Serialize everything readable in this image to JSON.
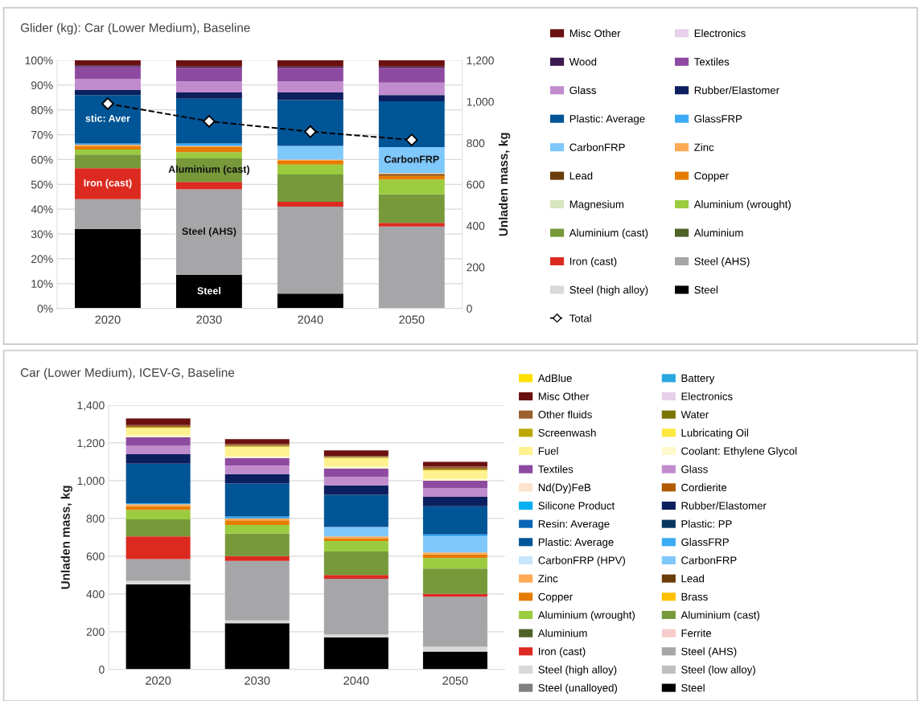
{
  "chart_data": [
    {
      "type": "bar",
      "title": "Glider (kg): Car (Lower Medium), Baseline",
      "y2label": "Unladen mass, kg",
      "stacked": true,
      "grid": "y",
      "legend": "right",
      "categories": [
        "2020",
        "2030",
        "2040",
        "2050"
      ],
      "ylim": [
        0,
        100
      ],
      "yticks": [
        {
          "value": 0,
          "label": "0%"
        },
        {
          "value": 10,
          "label": "10%"
        },
        {
          "value": 20,
          "label": "20%"
        },
        {
          "value": 30,
          "label": "30%"
        },
        {
          "value": 40,
          "label": "40%"
        },
        {
          "value": 50,
          "label": "50%"
        },
        {
          "value": 60,
          "label": "60%"
        },
        {
          "value": 70,
          "label": "70%"
        },
        {
          "value": 80,
          "label": "80%"
        },
        {
          "value": 90,
          "label": "90%"
        },
        {
          "value": 100,
          "label": "100%"
        }
      ],
      "y2lim": [
        0,
        1200
      ],
      "y2ticks": [
        0,
        200,
        400,
        600,
        800,
        {
          "value": 1000,
          "label": "1,000"
        },
        {
          "value": 1200,
          "label": "1,200"
        }
      ],
      "series": [
        {
          "name": "Steel",
          "color": "#000000",
          "values": [
            32,
            13.5,
            6,
            0
          ],
          "value_labels": [
            null,
            "Steel",
            null,
            null
          ]
        },
        {
          "name": "Steel (high alloy)",
          "color": "#d9d9d9",
          "values": [
            0,
            0,
            0,
            0
          ]
        },
        {
          "name": "Steel (AHS)",
          "color": "#a6a6a8",
          "values": [
            12,
            34.5,
            35,
            33
          ],
          "value_labels": [
            null,
            "Steel (AHS)",
            null,
            null
          ]
        },
        {
          "name": "Iron (cast)",
          "color": "#dc2a20",
          "values": [
            12.5,
            3,
            2,
            1.5
          ],
          "value_labels": [
            "Iron (cast)",
            null,
            null,
            null
          ]
        },
        {
          "name": "Aluminium",
          "color": "#4f6228",
          "values": [
            0,
            0,
            0,
            0
          ]
        },
        {
          "name": "Aluminium (cast)",
          "color": "#77993a",
          "values": [
            5.5,
            9.5,
            11,
            11.5
          ],
          "value_labels": [
            null,
            "Aluminium (cast)",
            null,
            null
          ]
        },
        {
          "name": "Aluminium (wrought)",
          "color": "#9bcc40",
          "values": [
            2,
            2.5,
            4,
            6
          ]
        },
        {
          "name": "Magnesium",
          "color": "#d7e4bd",
          "values": [
            0,
            0,
            0,
            0
          ]
        },
        {
          "name": "Copper",
          "color": "#e57c00",
          "values": [
            1.5,
            2,
            1.5,
            1.5
          ]
        },
        {
          "name": "Lead",
          "color": "#6b3d0a",
          "values": [
            0,
            0,
            0,
            0.5
          ]
        },
        {
          "name": "Zinc",
          "color": "#ffaa55",
          "values": [
            0.5,
            0.5,
            0.5,
            0.5
          ]
        },
        {
          "name": "CarbonFRP",
          "color": "#7fc8fc",
          "values": [
            0,
            0,
            5.5,
            10.5
          ],
          "value_labels": [
            null,
            null,
            null,
            "CarbonFRP"
          ]
        },
        {
          "name": "GlassFRP",
          "color": "#3baaf5",
          "values": [
            0.5,
            1,
            0,
            0
          ]
        },
        {
          "name": "Plastic: Average",
          "color": "#005596",
          "values": [
            19.5,
            18,
            18.5,
            18.5
          ],
          "value_labels": [
            "stic: Aver",
            null,
            null,
            null
          ]
        },
        {
          "name": "Rubber/Elastomer",
          "color": "#0c1f5e",
          "values": [
            2,
            2.5,
            3,
            2.5
          ]
        },
        {
          "name": "Glass",
          "color": "#c08ccd",
          "values": [
            4.5,
            4.5,
            4.5,
            5
          ]
        },
        {
          "name": "Textiles",
          "color": "#8e4aa0",
          "values": [
            5,
            5.5,
            5.5,
            6
          ]
        },
        {
          "name": "Wood",
          "color": "#3c1a4e",
          "values": [
            0.5,
            0.5,
            0.5,
            0.5
          ]
        },
        {
          "name": "Electronics",
          "color": "#e8d0ea",
          "values": [
            0,
            0,
            0,
            0
          ]
        },
        {
          "name": "Misc Other",
          "color": "#6b1010",
          "values": [
            2,
            2.5,
            2.5,
            2.5
          ]
        },
        {
          "name": "Total",
          "type": "line",
          "axis": "y2",
          "color": "#000000",
          "marker": "diamond",
          "line_style": "dashed",
          "values": [
            990,
            905,
            855,
            815
          ]
        }
      ]
    },
    {
      "type": "bar",
      "title": "Car (Lower Medium), ICEV-G, Baseline",
      "ylabel": "Unladen mass, kg",
      "stacked": true,
      "grid": "y",
      "legend": "right",
      "categories": [
        "2020",
        "2030",
        "2040",
        "2050"
      ],
      "ylim": [
        0,
        1400
      ],
      "yticks": [
        0,
        200,
        400,
        600,
        800,
        {
          "value": 1000,
          "label": "1,000"
        },
        {
          "value": 1200,
          "label": "1,200"
        },
        {
          "value": 1400,
          "label": "1,400"
        }
      ],
      "series": [
        {
          "name": "Steel",
          "color": "#000000",
          "values": [
            450,
            245,
            170,
            95
          ]
        },
        {
          "name": "Steel (unalloyed)",
          "color": "#7f7f7f",
          "values": [
            0,
            0,
            0,
            0
          ]
        },
        {
          "name": "Steel (low alloy)",
          "color": "#bfbfbf",
          "values": [
            0,
            0,
            0,
            0
          ]
        },
        {
          "name": "Steel (high alloy)",
          "color": "#d9d9d9",
          "values": [
            20,
            15,
            15,
            25
          ]
        },
        {
          "name": "Steel (AHS)",
          "color": "#a6a6a8",
          "values": [
            115,
            315,
            295,
            265
          ]
        },
        {
          "name": "Iron (cast)",
          "color": "#dc2a20",
          "values": [
            120,
            25,
            20,
            15
          ]
        },
        {
          "name": "Ferrite",
          "color": "#f8cccc",
          "values": [
            0,
            0,
            0,
            0
          ]
        },
        {
          "name": "Aluminium",
          "color": "#4f6228",
          "values": [
            0,
            0,
            0,
            0
          ]
        },
        {
          "name": "Aluminium (cast)",
          "color": "#77993a",
          "values": [
            90,
            120,
            125,
            135
          ]
        },
        {
          "name": "Aluminium (wrought)",
          "color": "#9bcc40",
          "values": [
            50,
            45,
            55,
            55
          ]
        },
        {
          "name": "Brass",
          "color": "#ffc000",
          "values": [
            0,
            0,
            0,
            0
          ]
        },
        {
          "name": "Copper",
          "color": "#e57c00",
          "values": [
            20,
            25,
            15,
            20
          ]
        },
        {
          "name": "Lead",
          "color": "#6b3d0a",
          "values": [
            0,
            0,
            0,
            0
          ]
        },
        {
          "name": "Zinc",
          "color": "#ffaa55",
          "values": [
            10,
            10,
            10,
            10
          ]
        },
        {
          "name": "CarbonFRP",
          "color": "#7fc8fc",
          "values": [
            0,
            0,
            50,
            85
          ]
        },
        {
          "name": "CarbonFRP (HPV)",
          "color": "#c6e6fc",
          "values": [
            0,
            0,
            0,
            0
          ]
        },
        {
          "name": "GlassFRP",
          "color": "#3baaf5",
          "values": [
            5,
            10,
            0,
            10
          ]
        },
        {
          "name": "Plastic: Average",
          "color": "#005596",
          "values": [
            210,
            175,
            170,
            150
          ]
        },
        {
          "name": "Plastic: PP",
          "color": "#06365e",
          "values": [
            0,
            0,
            0,
            0
          ]
        },
        {
          "name": "Resin: Average",
          "color": "#0b66b5",
          "values": [
            0,
            0,
            0,
            0
          ]
        },
        {
          "name": "Rubber/Elastomer",
          "color": "#0c1f5e",
          "values": [
            50,
            50,
            50,
            50
          ]
        },
        {
          "name": "Silicone Product",
          "color": "#00b0f0",
          "values": [
            0,
            0,
            0,
            0
          ]
        },
        {
          "name": "Cordierite",
          "color": "#b05a00",
          "values": [
            0,
            0,
            0,
            0
          ]
        },
        {
          "name": "Nd(Dy)FeB",
          "color": "#fde3cc",
          "values": [
            0,
            0,
            0,
            0
          ]
        },
        {
          "name": "Glass",
          "color": "#c08ccd",
          "values": [
            45,
            45,
            45,
            45
          ]
        },
        {
          "name": "Textiles",
          "color": "#8e4aa0",
          "values": [
            45,
            40,
            45,
            40
          ]
        },
        {
          "name": "Coolant: Ethylene Glycol",
          "color": "#fff8cc",
          "values": [
            10,
            10,
            10,
            10
          ]
        },
        {
          "name": "Fuel",
          "color": "#fff18f",
          "values": [
            40,
            50,
            45,
            45
          ]
        },
        {
          "name": "Lubricating Oil",
          "color": "#ffe840",
          "values": [
            0,
            0,
            0,
            0
          ]
        },
        {
          "name": "Screenwash",
          "color": "#bba700",
          "values": [
            5,
            5,
            5,
            5
          ]
        },
        {
          "name": "Water",
          "color": "#7a7500",
          "values": [
            0,
            0,
            0,
            0
          ]
        },
        {
          "name": "Other fluids",
          "color": "#9c5f2e",
          "values": [
            10,
            10,
            5,
            15
          ]
        },
        {
          "name": "Electronics",
          "color": "#e8d0ea",
          "values": [
            0,
            0,
            0,
            0
          ]
        },
        {
          "name": "Misc Other",
          "color": "#6b1010",
          "values": [
            35,
            25,
            30,
            25
          ]
        },
        {
          "name": "Battery",
          "color": "#29a8e0",
          "values": [
            0,
            0,
            0,
            0
          ]
        },
        {
          "name": "AdBlue",
          "color": "#ffe000",
          "values": [
            0,
            0,
            0,
            0
          ]
        }
      ]
    }
  ]
}
